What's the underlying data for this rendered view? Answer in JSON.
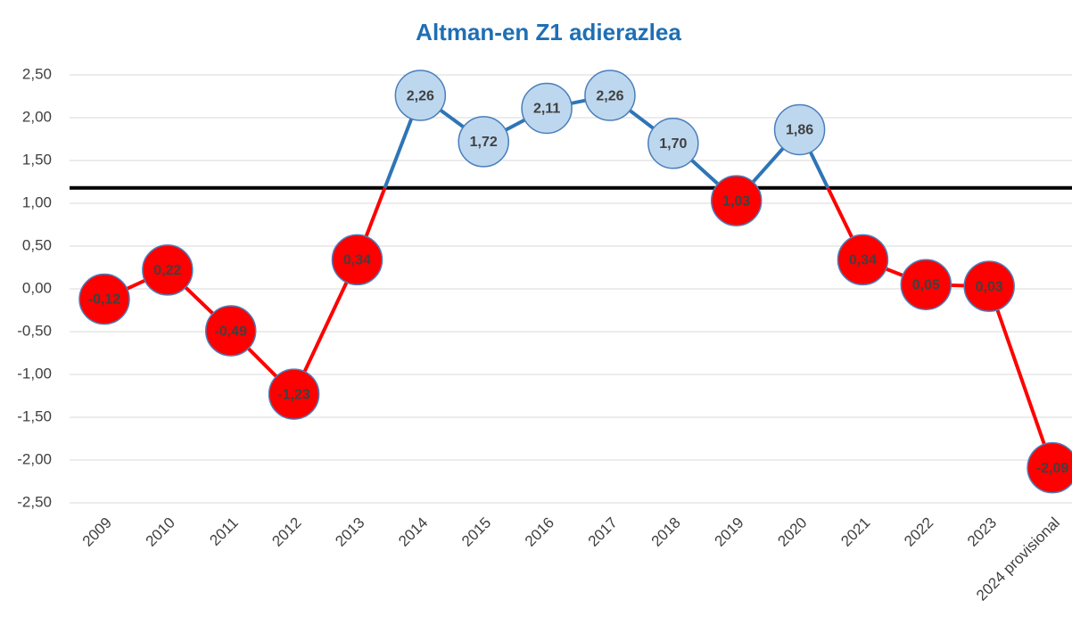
{
  "chart_data": {
    "type": "line",
    "title": "Altman-en Z1 adierazlea",
    "categories": [
      "2009",
      "2010",
      "2011",
      "2012",
      "2013",
      "2014",
      "2015",
      "2016",
      "2017",
      "2018",
      "2019",
      "2020",
      "2021",
      "2022",
      "2023",
      "2024 provisional"
    ],
    "values": [
      -0.12,
      0.22,
      -0.49,
      -1.23,
      0.34,
      2.26,
      1.72,
      2.11,
      2.26,
      1.7,
      1.03,
      1.86,
      0.34,
      0.05,
      0.03,
      -2.09
    ],
    "value_labels": [
      "-0,12",
      "0,22",
      "-0,49",
      "-1,23",
      "0,34",
      "2,26",
      "1,72",
      "2,11",
      "2,26",
      "1,70",
      "1,03",
      "1,86",
      "0,34",
      "0,05",
      "0,03",
      "-2,09"
    ],
    "threshold": 1.18,
    "threshold_color": "#000000",
    "above_color": "#bdd7ee",
    "above_line_color": "#2e75b6",
    "below_color": "#ff0000",
    "below_line_color": "#ff0000",
    "marker_edge_color": "#4a7ebb",
    "ylim": [
      -2.5,
      2.5
    ],
    "yticks": [
      {
        "value": -2.5,
        "label": "-2,50"
      },
      {
        "value": -2,
        "label": "-2,00"
      },
      {
        "value": -1.5,
        "label": "-1,50"
      },
      {
        "value": -1,
        "label": "-1,00"
      },
      {
        "value": -0.5,
        "label": "-0,50"
      },
      {
        "value": 0,
        "label": "0,00"
      },
      {
        "value": 0.5,
        "label": "0,50"
      },
      {
        "value": 1,
        "label": "1,00"
      },
      {
        "value": 1.5,
        "label": "1,50"
      },
      {
        "value": 2,
        "label": "2,00"
      },
      {
        "value": 2.5,
        "label": "2,50"
      }
    ],
    "grid": true
  }
}
